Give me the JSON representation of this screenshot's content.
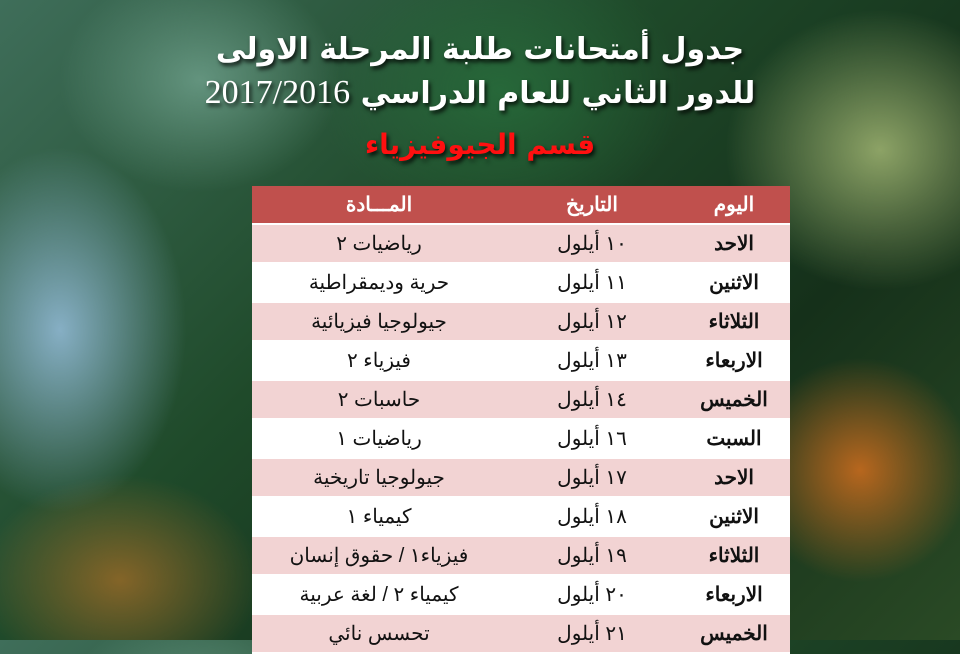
{
  "heading": {
    "line1": "جدول أمتحانات طلبة المرحلة الاولى",
    "line2": "للدور الثاني للعام الدراسي",
    "year": "2017/2016",
    "department": "قسم الجيوفيزياء"
  },
  "table": {
    "headers": {
      "day": "اليوم",
      "date": "التاريخ",
      "subject": "المـــادة"
    },
    "header_color": "#c0504d",
    "rows": [
      {
        "day": "الاحد",
        "date": "١٠ أيلول",
        "subject": "رياضيات ٢"
      },
      {
        "day": "الاثنين",
        "date": "١١ أيلول",
        "subject": "حرية وديمقراطية"
      },
      {
        "day": "الثلاثاء",
        "date": "١٢ أيلول",
        "subject": "جيولوجيا فيزيائية"
      },
      {
        "day": "الاربعاء",
        "date": "١٣ أيلول",
        "subject": "فيزياء ٢"
      },
      {
        "day": "الخميس",
        "date": "١٤ أيلول",
        "subject": "حاسبات ٢"
      },
      {
        "day": "السبت",
        "date": "١٦ أيلول",
        "subject": "رياضيات ١"
      },
      {
        "day": "الاحد",
        "date": "١٧ أيلول",
        "subject": "جيولوجيا تاريخية"
      },
      {
        "day": "الاثنين",
        "date": "١٨ أيلول",
        "subject": "كيمياء ١"
      },
      {
        "day": "الثلاثاء",
        "date": "١٩ أيلول",
        "subject": "فيزياء١    / حقوق إنسان"
      },
      {
        "day": "الاربعاء",
        "date": "٢٠ أيلول",
        "subject": "كيمياء ٢    / لغة عربية"
      },
      {
        "day": "الخميس",
        "date": "٢١ أيلول",
        "subject": "تحسس نائي"
      }
    ]
  }
}
